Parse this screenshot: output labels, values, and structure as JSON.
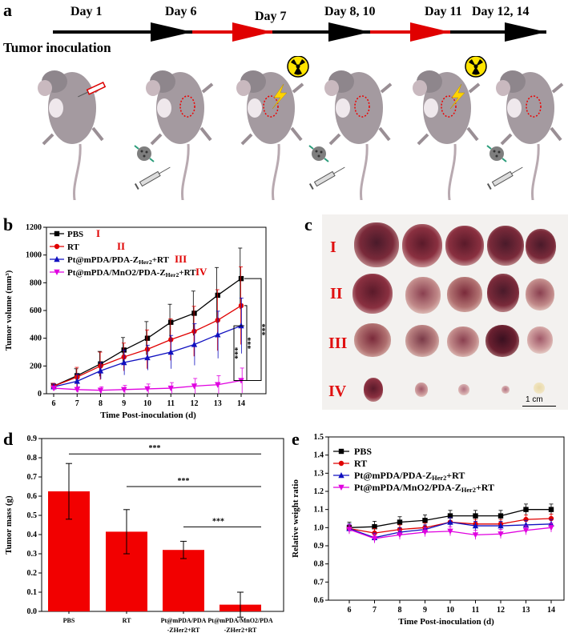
{
  "panels": {
    "a": "a",
    "b": "b",
    "c": "c",
    "d": "d",
    "e": "e"
  },
  "timeline": {
    "days": [
      "Day 1",
      "Day 6",
      "Day 7",
      "Day 8, 10",
      "Day 11",
      "Day 12, 14"
    ],
    "inoculation_label": "Tumor inoculation",
    "colors": {
      "black": "#000000",
      "red": "#e00000"
    }
  },
  "photo": {
    "row_labels": [
      "I",
      "II",
      "III",
      "IV"
    ],
    "scale_bar": "1 cm"
  },
  "chart_b": {
    "type": "line",
    "xlabel": "Time Post-inoculation (d)",
    "ylabel": "Tumor volume (mm³)",
    "x": [
      6,
      7,
      8,
      9,
      10,
      11,
      12,
      13,
      14
    ],
    "xlim": [
      6,
      14
    ],
    "ylim": [
      0,
      1200
    ],
    "yticks": [
      0,
      200,
      400,
      600,
      800,
      1000,
      1200
    ],
    "series": [
      {
        "name": "PBS",
        "roman": "I",
        "color": "#000000",
        "marker": "square",
        "values": [
          55,
          130,
          215,
          315,
          400,
          515,
          580,
          710,
          830
        ],
        "err": [
          20,
          50,
          90,
          90,
          120,
          130,
          160,
          200,
          220
        ]
      },
      {
        "name": "RT",
        "roman": "II",
        "color": "#e00000",
        "marker": "circle",
        "values": [
          55,
          120,
          200,
          265,
          320,
          390,
          450,
          530,
          635
        ],
        "err": [
          20,
          70,
          100,
          100,
          140,
          150,
          180,
          220,
          280
        ]
      },
      {
        "name": "Pt@mPDA/PDA-ZHer2+RT",
        "roman": "III",
        "color": "#1010c0",
        "marker": "triangle",
        "values": [
          50,
          90,
          165,
          225,
          260,
          300,
          355,
          425,
          490
        ],
        "err": [
          20,
          50,
          60,
          90,
          90,
          120,
          150,
          170,
          200
        ]
      },
      {
        "name": "Pt@mPDA/MnO2/PDA-ZHer2+RT",
        "roman": "IV",
        "color": "#e000e0",
        "marker": "triangle-down",
        "values": [
          40,
          30,
          25,
          30,
          35,
          40,
          55,
          65,
          95
        ],
        "err": [
          15,
          20,
          25,
          30,
          35,
          40,
          55,
          65,
          90
        ]
      }
    ],
    "legend": [
      {
        "text": "PBS",
        "roman": "I"
      },
      {
        "text": "RT",
        "roman": "II"
      },
      {
        "text": "Pt@mPDA/PDA-Z",
        "sub": "Her2",
        "tail": "+RT",
        "roman": "III"
      },
      {
        "text": "Pt@mPDA/MnO2/PDA-Z",
        "sub": "Her2",
        "tail": "+RT",
        "roman": "IV"
      }
    ],
    "significance": [
      "***",
      "***",
      "***"
    ]
  },
  "chart_d": {
    "type": "bar",
    "ylabel": "Tumor mass (g)",
    "categories": [
      {
        "line1": "PBS",
        "line2": ""
      },
      {
        "line1": "RT",
        "line2": ""
      },
      {
        "line1": "Pt@mPDA/PDA",
        "line2": "-ZHer2+RT"
      },
      {
        "line1": "Pt@mPDA/MnO2/PDA",
        "line2": "-ZHer2+RT"
      }
    ],
    "values": [
      0.625,
      0.415,
      0.32,
      0.035
    ],
    "err": [
      0.145,
      0.115,
      0.045,
      0.065
    ],
    "ylim": [
      0,
      0.9
    ],
    "yticks": [
      "0.0",
      "0.1",
      "0.2",
      "0.3",
      "0.4",
      "0.5",
      "0.6",
      "0.7",
      "0.8",
      "0.9"
    ],
    "color": "#f20000",
    "significance": [
      "***",
      "***",
      "***"
    ]
  },
  "chart_e": {
    "type": "line",
    "xlabel": "Time Post-inoculation (d)",
    "ylabel": "Relative weight ratio",
    "x": [
      6,
      7,
      8,
      9,
      10,
      11,
      12,
      13,
      14
    ],
    "ylim": [
      0.6,
      1.5
    ],
    "yticks": [
      "0.6",
      "0.7",
      "0.8",
      "0.9",
      "1.0",
      "1.1",
      "1.2",
      "1.3",
      "1.4",
      "1.5"
    ],
    "series": [
      {
        "name": "PBS",
        "color": "#000000",
        "marker": "square",
        "values": [
          1.0,
          1.005,
          1.03,
          1.04,
          1.065,
          1.065,
          1.065,
          1.1,
          1.1
        ],
        "err": 0.03
      },
      {
        "name": "RT",
        "color": "#e00000",
        "marker": "circle",
        "values": [
          0.995,
          0.97,
          0.99,
          1.0,
          1.03,
          1.02,
          1.02,
          1.045,
          1.05
        ],
        "err": 0.025
      },
      {
        "name": "Pt@mPDA/PDA-ZHer2+RT",
        "color": "#1010c0",
        "marker": "triangle",
        "values": [
          0.995,
          0.945,
          0.975,
          0.99,
          1.03,
          1.01,
          1.01,
          1.015,
          1.02
        ],
        "err": 0.025
      },
      {
        "name": "Pt@mPDA/MnO2/PDA-ZHer2+RT",
        "color": "#e000e0",
        "marker": "triangle-down",
        "values": [
          0.99,
          0.94,
          0.96,
          0.975,
          0.98,
          0.96,
          0.965,
          0.985,
          1.0
        ],
        "err": 0.025
      }
    ],
    "legend": [
      {
        "text": "PBS"
      },
      {
        "text": "RT"
      },
      {
        "text": "Pt@mPDA/PDA-Z",
        "sub": "Her2",
        "tail": "+RT"
      },
      {
        "text": "Pt@mPDA/MnO2/PDA-Z",
        "sub": "Her2",
        "tail": "+RT"
      }
    ]
  }
}
